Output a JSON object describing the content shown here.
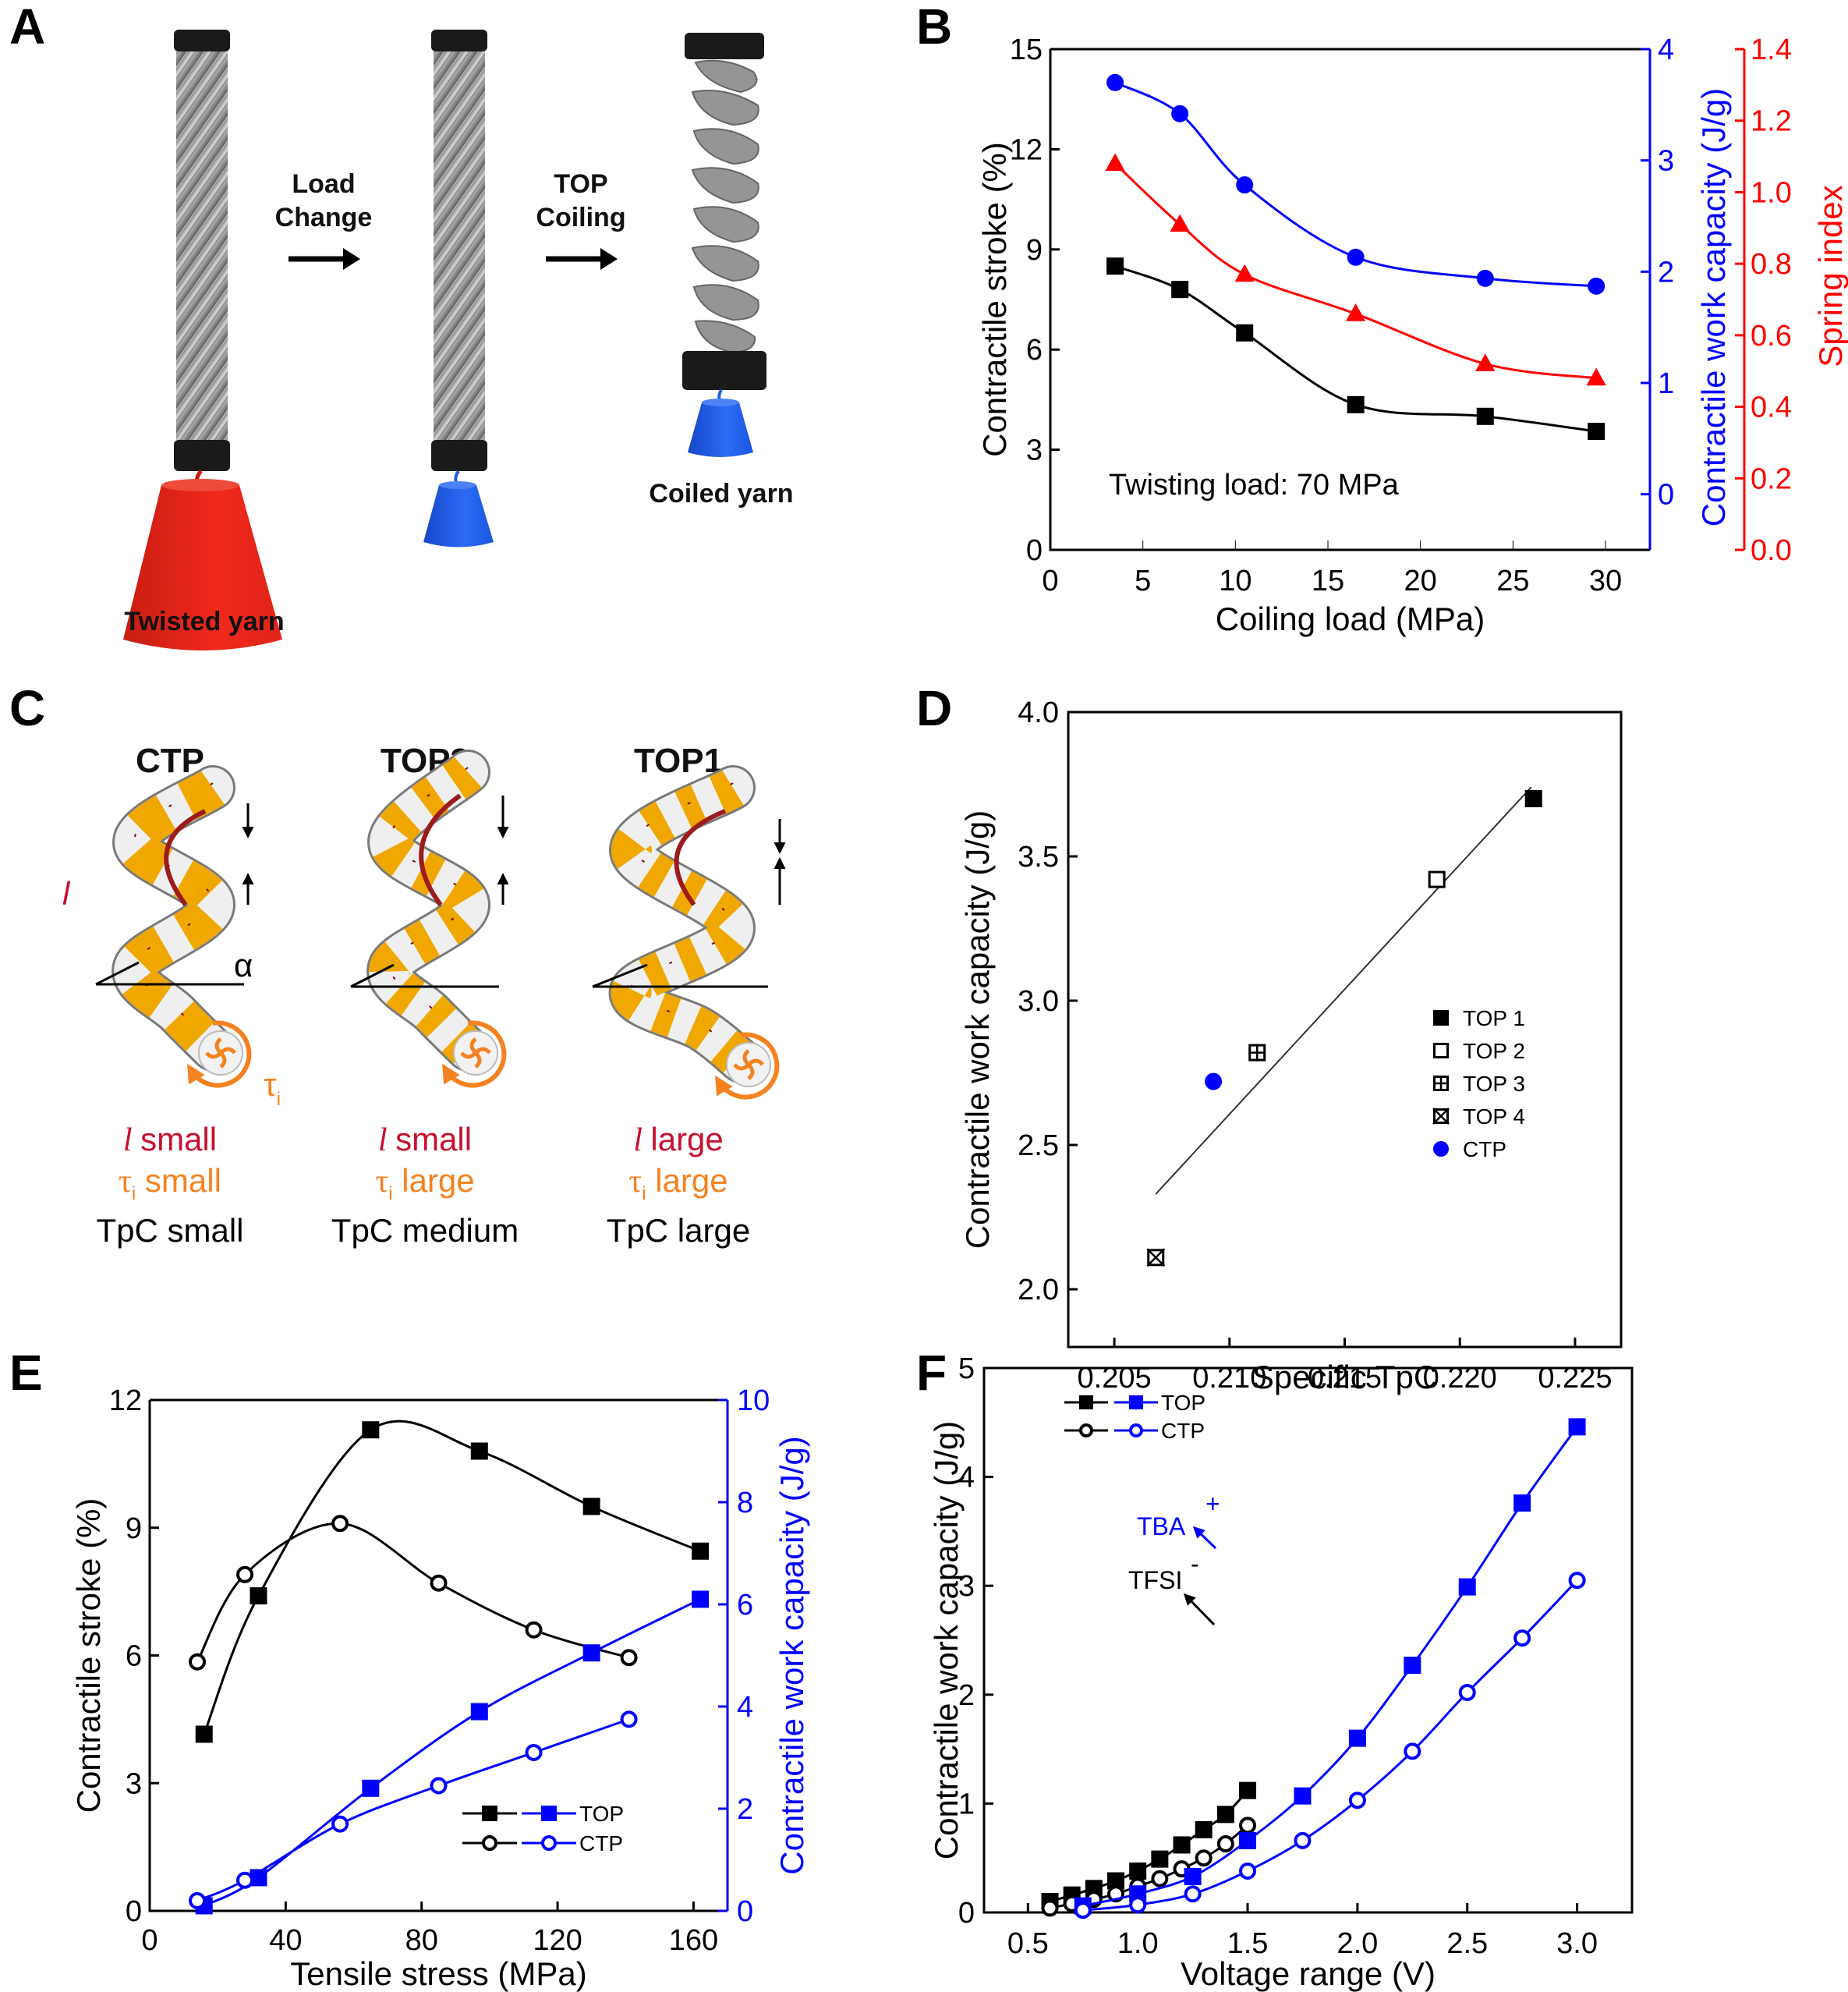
{
  "panels": {
    "A": {
      "letter": "A",
      "arrow1_line1": "Load",
      "arrow1_line2": "Change",
      "arrow2_line1": "TOP",
      "arrow2_line2": "Coiling",
      "label_twisted": "Twisted yarn",
      "label_coiled": "Coiled yarn",
      "colors": {
        "heavy_weight": "#e8261c",
        "light_weight": "#1f5ee8",
        "clamp": "#1a1a1a"
      }
    },
    "B": {
      "letter": "B"
    },
    "C": {
      "letter": "C",
      "columns": [
        {
          "title": "CTP",
          "l_text": "small",
          "tau_text": "small",
          "tpc_text": "TpC small"
        },
        {
          "title": "TOP3",
          "l_text": "small",
          "tau_text": "large",
          "tpc_text": "TpC medium"
        },
        {
          "title": "TOP1",
          "l_text": "large",
          "tau_text": "large",
          "tpc_text": "TpC large"
        }
      ],
      "l_symbol": "l",
      "tau_symbol": "τ",
      "tau_sub": "i",
      "alpha_symbol": "α",
      "colors": {
        "l": "#c8102e",
        "tau": "#f58220",
        "stripe": "#f0a800",
        "fiber": "#9c1b1b"
      }
    },
    "D": {
      "letter": "D"
    },
    "E": {
      "letter": "E"
    },
    "F": {
      "letter": "F"
    }
  },
  "chart_data": [
    {
      "id": "B",
      "type": "line",
      "xlabel": "Coiling load (MPa)",
      "xlim": [
        0,
        32.4
      ],
      "xticks": [
        0,
        5,
        10,
        15,
        20,
        25,
        30
      ],
      "annotation": "Twisting load: 70 MPa",
      "axes": [
        {
          "id": "left",
          "label": "Contractile stroke (%)",
          "color": "#000000",
          "lim": [
            0,
            15
          ],
          "ticks": [
            0,
            3,
            6,
            9,
            12,
            15
          ]
        },
        {
          "id": "blue",
          "label": "Contractile work capacity (J/g)",
          "color": "#0000ff",
          "lim": [
            -0.5,
            4
          ],
          "ticks": [
            0,
            1,
            2,
            3,
            4
          ]
        },
        {
          "id": "red",
          "label": "Spring index",
          "color": "#ff0000",
          "lim": [
            0,
            1.4
          ],
          "ticks": [
            0.0,
            0.2,
            0.4,
            0.6,
            0.8,
            1.0,
            1.2,
            1.4
          ]
        }
      ],
      "series": [
        {
          "name": "Contractile stroke",
          "axis": "left",
          "color": "#000000",
          "marker": "square-filled",
          "x": [
            3.5,
            7.0,
            10.5,
            16.5,
            23.5,
            29.5
          ],
          "y": [
            8.5,
            7.8,
            6.5,
            4.35,
            4.0,
            3.55
          ]
        },
        {
          "name": "Contractile work capacity",
          "axis": "blue",
          "color": "#0000ff",
          "marker": "circle-filled",
          "x": [
            3.5,
            7.0,
            10.5,
            16.5,
            23.5,
            29.5
          ],
          "y": [
            3.7,
            3.42,
            2.78,
            2.13,
            1.94,
            1.87
          ]
        },
        {
          "name": "Spring index",
          "axis": "red",
          "color": "#ff0000",
          "marker": "triangle-filled",
          "x": [
            3.5,
            7.0,
            10.5,
            16.5,
            23.5,
            29.5
          ],
          "y": [
            1.08,
            0.91,
            0.77,
            0.66,
            0.52,
            0.48
          ]
        }
      ]
    },
    {
      "id": "D",
      "type": "scatter",
      "xlabel": "Specific TpC",
      "ylabel": "Contractile work capacity (J/g)",
      "xlim": [
        0.203,
        0.227
      ],
      "ylim": [
        1.8,
        4.0
      ],
      "xticks": [
        "0.205",
        "0.210",
        "0.215",
        "0.220",
        "0.225"
      ],
      "yticks": [
        "2.0",
        "2.5",
        "3.0",
        "3.5",
        "4.0"
      ],
      "legend_position": "center-right",
      "fit_line": {
        "x": [
          0.2068,
          0.2231
        ],
        "y": [
          2.33,
          3.74
        ]
      },
      "series": [
        {
          "name": "TOP 1",
          "marker": "square-filled",
          "color": "#000000",
          "x": 0.2232,
          "y": 3.7
        },
        {
          "name": "TOP 2",
          "marker": "square-open",
          "color": "#000000",
          "x": 0.219,
          "y": 3.42
        },
        {
          "name": "TOP 3",
          "marker": "square-plus",
          "color": "#000000",
          "x": 0.2112,
          "y": 2.82
        },
        {
          "name": "TOP 4",
          "marker": "square-cross",
          "color": "#000000",
          "x": 0.2068,
          "y": 2.11
        },
        {
          "name": "CTP",
          "marker": "circle-filled",
          "color": "#0000ff",
          "x": 0.2093,
          "y": 2.72
        }
      ]
    },
    {
      "id": "E",
      "type": "line",
      "xlabel": "Tensile stress (MPa)",
      "xlim": [
        0,
        170
      ],
      "xticks": [
        0,
        40,
        80,
        120,
        160
      ],
      "legend_position": "bottom-right",
      "legend": [
        {
          "name": "TOP",
          "marker": "square-filled"
        },
        {
          "name": "CTP",
          "marker": "circle-open"
        }
      ],
      "axes": [
        {
          "id": "left",
          "label": "Contractile stroke (%)",
          "color": "#000000",
          "lim": [
            0,
            12
          ],
          "ticks": [
            0,
            3,
            6,
            9,
            12
          ]
        },
        {
          "id": "right",
          "label": "Contractile work capacity (J/g)",
          "color": "#0000ff",
          "lim": [
            0,
            10
          ],
          "ticks": [
            0,
            2,
            4,
            6,
            8,
            10
          ]
        }
      ],
      "series": [
        {
          "name": "TOP stroke",
          "axis": "left",
          "color": "#000000",
          "marker": "square-filled",
          "x": [
            16,
            32,
            65,
            97,
            130,
            162
          ],
          "y": [
            4.15,
            7.4,
            11.3,
            10.8,
            9.5,
            8.45
          ]
        },
        {
          "name": "CTP stroke",
          "axis": "left",
          "color": "#000000",
          "marker": "circle-open",
          "x": [
            14,
            28,
            56,
            85,
            113,
            141
          ],
          "y": [
            5.85,
            7.9,
            9.1,
            7.7,
            6.6,
            5.95
          ]
        },
        {
          "name": "TOP work",
          "axis": "right",
          "color": "#0000ff",
          "marker": "square-filled",
          "x": [
            16,
            32,
            65,
            97,
            130,
            162
          ],
          "y": [
            0.1,
            0.65,
            2.4,
            3.9,
            5.05,
            6.1
          ]
        },
        {
          "name": "CTP work",
          "axis": "right",
          "color": "#0000ff",
          "marker": "circle-open",
          "x": [
            14,
            28,
            56,
            85,
            113,
            141
          ],
          "y": [
            0.2,
            0.6,
            1.7,
            2.45,
            3.1,
            3.75
          ]
        }
      ]
    },
    {
      "id": "F",
      "type": "line",
      "xlabel": "Voltage range (V)",
      "ylabel": "Contractile work capacity (J/g)",
      "xlim": [
        0.3,
        3.25
      ],
      "ylim": [
        0,
        5
      ],
      "xticks": [
        "0.5",
        "1.0",
        "1.5",
        "2.0",
        "2.5",
        "3.0"
      ],
      "yticks": [
        "0",
        "1",
        "2",
        "3",
        "4",
        "5"
      ],
      "legend_position": "top-left",
      "legend": [
        {
          "name": "TOP",
          "marker": "square-filled"
        },
        {
          "name": "CTP",
          "marker": "circle-open"
        }
      ],
      "annotations": [
        {
          "text": "TFSI",
          "sup": "-",
          "color": "#000000"
        },
        {
          "text": "TBA",
          "sup": "+",
          "color": "#0000ff"
        }
      ],
      "series": [
        {
          "name": "TOP TFSI-",
          "color": "#000000",
          "marker": "square-filled",
          "x": [
            0.6,
            0.7,
            0.8,
            0.9,
            1.0,
            1.1,
            1.2,
            1.3,
            1.4,
            1.5
          ],
          "y": [
            0.1,
            0.16,
            0.22,
            0.29,
            0.38,
            0.49,
            0.62,
            0.76,
            0.9,
            1.12
          ]
        },
        {
          "name": "CTP TFSI-",
          "color": "#000000",
          "marker": "circle-open",
          "x": [
            0.6,
            0.7,
            0.8,
            0.9,
            1.0,
            1.1,
            1.2,
            1.3,
            1.4,
            1.5
          ],
          "y": [
            0.04,
            0.08,
            0.12,
            0.17,
            0.24,
            0.31,
            0.4,
            0.5,
            0.63,
            0.8
          ]
        },
        {
          "name": "TOP TBA+",
          "color": "#0000ff",
          "marker": "square-filled",
          "x": [
            0.75,
            1.0,
            1.25,
            1.5,
            1.75,
            2.0,
            2.25,
            2.5,
            2.75,
            3.0
          ],
          "y": [
            0.06,
            0.17,
            0.33,
            0.66,
            1.07,
            1.6,
            2.27,
            2.99,
            3.76,
            4.46
          ]
        },
        {
          "name": "CTP TBA+",
          "color": "#0000ff",
          "marker": "circle-open",
          "x": [
            0.75,
            1.0,
            1.25,
            1.5,
            1.75,
            2.0,
            2.25,
            2.5,
            2.75,
            3.0
          ],
          "y": [
            0.02,
            0.07,
            0.17,
            0.38,
            0.66,
            1.03,
            1.48,
            2.02,
            2.52,
            3.05
          ]
        }
      ]
    }
  ]
}
